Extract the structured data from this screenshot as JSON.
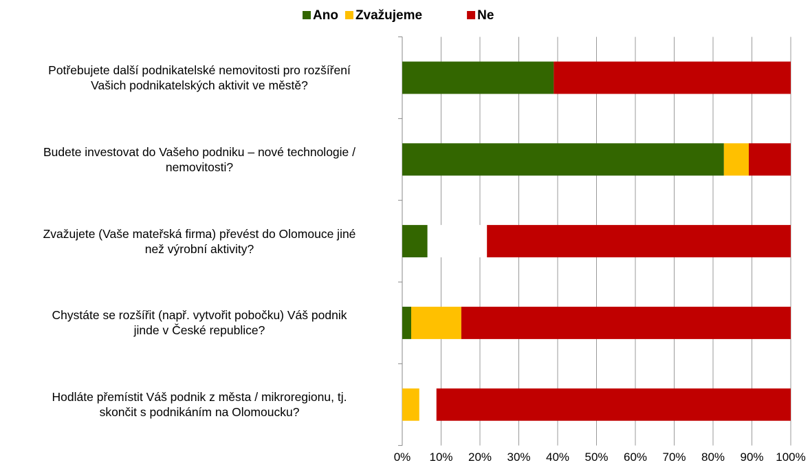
{
  "chart_data": {
    "type": "stacked-bar-horizontal",
    "categories": [
      "Potřebujete další podnikatelské nemovitosti pro rozšíření\nVašich podnikatelských aktivit ve městě?",
      "Budete investovat do Vašeho podniku – nové technologie /\nnemovitosti?",
      "Zvažujete (Vaše mateřská firma) převést do Olomouce jiné\nnež výrobní aktivity?",
      "Chystáte se rozšířit (např. vytvořit pobočku) Váš podnik\njinde v České republice?",
      "Hodláte přemístit Váš podnik z města / mikroregionu, tj.\nskončit s podnikáním na Olomoucku?"
    ],
    "series": [
      {
        "name": "Ano",
        "color": "#336600",
        "values": [
          39,
          82.8,
          6.5,
          2.3,
          0
        ]
      },
      {
        "name": "Zvažujeme",
        "color": "#ffc000",
        "values": [
          0,
          6.4,
          0,
          12.9,
          4.4
        ]
      },
      {
        "color": "#ffffff",
        "values": [
          0,
          0,
          15.3,
          0,
          4.4
        ]
      },
      {
        "name": "Ne",
        "color": "#c00000",
        "values": [
          61,
          10.8,
          78.2,
          84.8,
          91.2
        ]
      }
    ],
    "xlim": [
      0,
      100
    ],
    "xticks": [
      {
        "value": 0,
        "label": "0%"
      },
      {
        "value": 10,
        "label": "10%"
      },
      {
        "value": 20,
        "label": "20%"
      },
      {
        "value": 30,
        "label": "30%"
      },
      {
        "value": 40,
        "label": "40%"
      },
      {
        "value": 50,
        "label": "50%"
      },
      {
        "value": 60,
        "label": "60%"
      },
      {
        "value": 70,
        "label": "70%"
      },
      {
        "value": 80,
        "label": "80%"
      },
      {
        "value": 90,
        "label": "90%"
      },
      {
        "value": 100,
        "label": "100%"
      }
    ],
    "grid": true,
    "legend": "top"
  }
}
